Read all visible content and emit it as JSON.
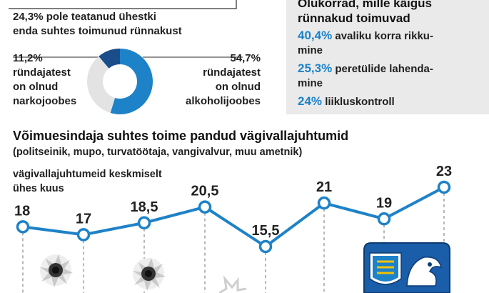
{
  "top_stat": {
    "pct": "24,3%",
    "line1_rest": " pole teatanud ühestki",
    "line2": "enda suhtes toimunud rünnakust"
  },
  "donut": {
    "drug_pct": "11,2%",
    "drug_line1": "ründajatest",
    "drug_line2": "on olnud",
    "drug_line3": "narkojoobes",
    "alc_pct": "54,7%",
    "alc_line1": "ründajatest",
    "alc_line2": "on olnud",
    "alc_line3": "alkoholijoobes",
    "values": {
      "alcohol": 54.7,
      "drugs": 11.2,
      "other": 34.1
    },
    "colors": {
      "alcohol": "#1e82c8",
      "drugs": "#1a4d8a",
      "other": "#e3e3e3"
    }
  },
  "panel": {
    "title_line1": "Olukorrad, mille käigus",
    "title_line2": "rünnakud toimuvad",
    "rows": [
      {
        "pct": "40,4%",
        "text1": " avaliku korra rikku-",
        "text2": "mine"
      },
      {
        "pct": "25,3%",
        "text1": " peretülide lahenda-",
        "text2": "mine"
      },
      {
        "pct": "24%",
        "text1": " liikluskontroll",
        "text2": ""
      }
    ]
  },
  "chart_title": "Võimuesindaja suhtes toime pandud vägivallajuhtumid",
  "chart_subtitle": "(politseinik, mupo, turvatöötaja, vangivalvur, muu ametnik)",
  "chart_ylabel_line1": "vägivallajuhtumeid keskmiselt",
  "chart_ylabel_line2": "ühes kuus",
  "chart_data": {
    "type": "line",
    "title": "Võimuesindaja suhtes toime pandud vägivallajuhtumid",
    "subtitle": "(politseinik, mupo, turvatöötaja, vangivalvur, muu ametnik)",
    "ylabel": "vägivallajuhtumeid keskmiselt ühes kuus",
    "values": [
      18,
      17,
      18.5,
      20.5,
      15.5,
      21,
      19,
      23
    ],
    "labels": [
      "18",
      "17",
      "18,5",
      "20,5",
      "15,5",
      "21",
      "19",
      "23"
    ],
    "ylim": [
      15.5,
      23
    ],
    "line_color": "#1e82c8",
    "grid": false
  },
  "colors": {
    "accent": "#1e82c8",
    "panel_bg": "#eaeaea"
  },
  "icons": [
    "bullet-hole-icon",
    "police-emblem-icon"
  ]
}
